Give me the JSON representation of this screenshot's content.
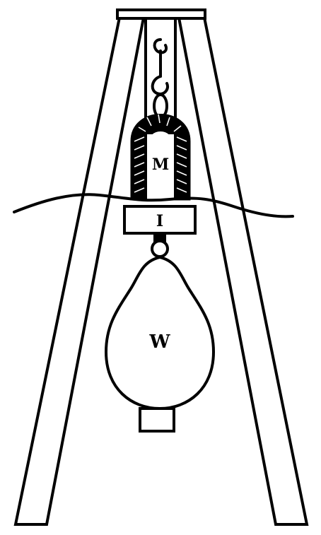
{
  "labels": {
    "magnet": "M",
    "iron_bar": "I",
    "weight": "W"
  },
  "colors": {
    "ink": "#000000",
    "paper": "#ffffff"
  }
}
